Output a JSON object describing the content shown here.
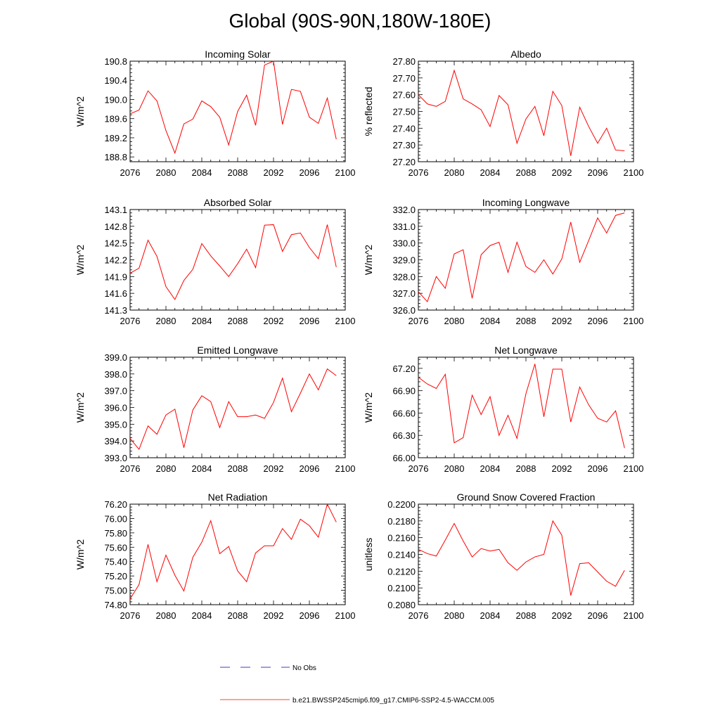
{
  "title": "Global (90S-90N,180W-180E)",
  "colors": {
    "model": "#ff0000",
    "obs": "#0000aa",
    "axis": "#000000"
  },
  "legend": {
    "obs_label": "No Obs",
    "model_label": "b.e21.BWSSP245cmip6.f09_g17.CMIP6-SSP2-4.5-WACCM.005"
  },
  "chart_data": [
    {
      "type": "line",
      "title": "Incoming Solar",
      "ylabel": "W/m^2",
      "xlim": [
        2076,
        2100
      ],
      "ylim": [
        188.7,
        190.8
      ],
      "xticks": [
        2076,
        2080,
        2084,
        2088,
        2092,
        2096,
        2100
      ],
      "yticks": [
        188.8,
        189.2,
        189.6,
        190.0,
        190.4,
        190.8
      ],
      "ytick_labels": [
        "188.8",
        "189.2",
        "189.6",
        "190.0",
        "190.4",
        "190.8"
      ],
      "x": [
        2076,
        2077,
        2078,
        2079,
        2080,
        2081,
        2082,
        2083,
        2084,
        2085,
        2086,
        2087,
        2088,
        2089,
        2090,
        2091,
        2092,
        2093,
        2094,
        2095,
        2096,
        2097,
        2098,
        2099
      ],
      "values": [
        189.7,
        189.78,
        190.18,
        189.97,
        189.35,
        188.88,
        189.49,
        189.59,
        189.97,
        189.85,
        189.63,
        189.05,
        189.75,
        190.09,
        189.46,
        190.72,
        190.8,
        189.48,
        190.21,
        190.17,
        189.63,
        189.5,
        190.03,
        189.17
      ]
    },
    {
      "type": "line",
      "title": "Albedo",
      "ylabel": "% reflected",
      "xlim": [
        2076,
        2100
      ],
      "ylim": [
        27.2,
        27.8
      ],
      "xticks": [
        2076,
        2080,
        2084,
        2088,
        2092,
        2096,
        2100
      ],
      "yticks": [
        27.2,
        27.3,
        27.4,
        27.5,
        27.6,
        27.7,
        27.8
      ],
      "ytick_labels": [
        "27.20",
        "27.30",
        "27.40",
        "27.50",
        "27.60",
        "27.70",
        "27.80"
      ],
      "x": [
        2076,
        2077,
        2078,
        2079,
        2080,
        2081,
        2082,
        2083,
        2084,
        2085,
        2086,
        2087,
        2088,
        2089,
        2090,
        2091,
        2092,
        2093,
        2094,
        2095,
        2096,
        2097,
        2098,
        2099
      ],
      "values": [
        27.6,
        27.545,
        27.53,
        27.56,
        27.745,
        27.575,
        27.545,
        27.51,
        27.41,
        27.595,
        27.54,
        27.31,
        27.455,
        27.53,
        27.355,
        27.62,
        27.535,
        27.235,
        27.525,
        27.41,
        27.31,
        27.4,
        27.27,
        27.265
      ]
    },
    {
      "type": "line",
      "title": "Absorbed Solar",
      "ylabel": "W/m^2",
      "xlim": [
        2076,
        2100
      ],
      "ylim": [
        141.3,
        143.1
      ],
      "xticks": [
        2076,
        2080,
        2084,
        2088,
        2092,
        2096,
        2100
      ],
      "yticks": [
        141.3,
        141.6,
        141.9,
        142.2,
        142.5,
        142.8,
        143.1
      ],
      "ytick_labels": [
        "141.3",
        "141.6",
        "141.9",
        "142.2",
        "142.5",
        "142.8",
        "143.1"
      ],
      "x": [
        2076,
        2077,
        2078,
        2079,
        2080,
        2081,
        2082,
        2083,
        2084,
        2085,
        2086,
        2087,
        2088,
        2089,
        2090,
        2091,
        2092,
        2093,
        2094,
        2095,
        2096,
        2097,
        2098,
        2099
      ],
      "values": [
        141.96,
        142.05,
        142.55,
        142.26,
        141.72,
        141.49,
        141.83,
        142.03,
        142.49,
        142.27,
        142.09,
        141.9,
        142.13,
        142.39,
        142.06,
        142.82,
        142.83,
        142.35,
        142.65,
        142.68,
        142.42,
        142.22,
        142.83,
        142.07
      ]
    },
    {
      "type": "line",
      "title": "Incoming Longwave",
      "ylabel": "W/m^2",
      "xlim": [
        2076,
        2100
      ],
      "ylim": [
        326.0,
        332.0
      ],
      "xticks": [
        2076,
        2080,
        2084,
        2088,
        2092,
        2096,
        2100
      ],
      "yticks": [
        326.0,
        327.0,
        328.0,
        329.0,
        330.0,
        331.0,
        332.0
      ],
      "ytick_labels": [
        "326.0",
        "327.0",
        "328.0",
        "329.0",
        "330.0",
        "331.0",
        "332.0"
      ],
      "x": [
        2076,
        2077,
        2078,
        2079,
        2080,
        2081,
        2082,
        2083,
        2084,
        2085,
        2086,
        2087,
        2088,
        2089,
        2090,
        2091,
        2092,
        2093,
        2094,
        2095,
        2096,
        2097,
        2098,
        2099
      ],
      "values": [
        327.1,
        326.5,
        328.0,
        327.3,
        329.35,
        329.6,
        326.7,
        329.3,
        329.85,
        330.05,
        328.25,
        330.05,
        328.6,
        328.25,
        329.0,
        328.15,
        329.05,
        331.25,
        328.85,
        330.15,
        331.5,
        330.6,
        331.65,
        331.8
      ]
    },
    {
      "type": "line",
      "title": "Emitted Longwave",
      "ylabel": "W/m^2",
      "xlim": [
        2076,
        2100
      ],
      "ylim": [
        393.0,
        399.0
      ],
      "xticks": [
        2076,
        2080,
        2084,
        2088,
        2092,
        2096,
        2100
      ],
      "yticks": [
        393.0,
        394.0,
        395.0,
        396.0,
        397.0,
        398.0,
        399.0
      ],
      "ytick_labels": [
        "393.0",
        "394.0",
        "395.0",
        "396.0",
        "397.0",
        "398.0",
        "399.0"
      ],
      "x": [
        2076,
        2077,
        2078,
        2079,
        2080,
        2081,
        2082,
        2083,
        2084,
        2085,
        2086,
        2087,
        2088,
        2089,
        2090,
        2091,
        2092,
        2093,
        2094,
        2095,
        2096,
        2097,
        2098,
        2099
      ],
      "values": [
        394.15,
        393.5,
        394.9,
        394.4,
        395.55,
        395.9,
        393.6,
        395.85,
        396.7,
        396.35,
        394.8,
        396.35,
        395.45,
        395.45,
        395.55,
        395.35,
        396.3,
        397.75,
        395.75,
        396.85,
        398.0,
        397.05,
        398.3,
        397.9
      ]
    },
    {
      "type": "line",
      "title": "Net Longwave",
      "ylabel": "W/m^2",
      "xlim": [
        2076,
        2100
      ],
      "ylim": [
        66.0,
        67.35
      ],
      "xticks": [
        2076,
        2080,
        2084,
        2088,
        2092,
        2096,
        2100
      ],
      "yticks": [
        66.0,
        66.3,
        66.6,
        66.9,
        67.2
      ],
      "ytick_labels": [
        "66.00",
        "66.30",
        "66.60",
        "66.90",
        "67.20"
      ],
      "x": [
        2076,
        2077,
        2078,
        2079,
        2080,
        2081,
        2082,
        2083,
        2084,
        2085,
        2086,
        2087,
        2088,
        2089,
        2090,
        2091,
        2092,
        2093,
        2094,
        2095,
        2096,
        2097,
        2098,
        2099
      ],
      "values": [
        67.08,
        66.99,
        66.93,
        67.12,
        66.2,
        66.27,
        66.84,
        66.58,
        66.82,
        66.3,
        66.57,
        66.26,
        66.86,
        67.26,
        66.55,
        67.19,
        67.19,
        66.48,
        66.95,
        66.71,
        66.53,
        66.48,
        66.63,
        66.13
      ]
    },
    {
      "type": "line",
      "title": "Net Radiation",
      "ylabel": "W/m^2",
      "xlim": [
        2076,
        2100
      ],
      "ylim": [
        74.8,
        76.2
      ],
      "xticks": [
        2076,
        2080,
        2084,
        2088,
        2092,
        2096,
        2100
      ],
      "yticks": [
        74.8,
        75.0,
        75.2,
        75.4,
        75.6,
        75.8,
        76.0,
        76.2
      ],
      "ytick_labels": [
        "74.80",
        "75.00",
        "75.20",
        "75.40",
        "75.60",
        "75.80",
        "76.00",
        "76.20"
      ],
      "x": [
        2076,
        2077,
        2078,
        2079,
        2080,
        2081,
        2082,
        2083,
        2084,
        2085,
        2086,
        2087,
        2088,
        2089,
        2090,
        2091,
        2092,
        2093,
        2094,
        2095,
        2096,
        2097,
        2098,
        2099
      ],
      "values": [
        74.88,
        75.08,
        75.64,
        75.12,
        75.49,
        75.21,
        74.99,
        75.46,
        75.67,
        75.97,
        75.51,
        75.61,
        75.27,
        75.12,
        75.52,
        75.62,
        75.62,
        75.86,
        75.71,
        75.99,
        75.9,
        75.74,
        76.2,
        75.95
      ]
    },
    {
      "type": "line",
      "title": "Ground Snow Covered Fraction",
      "ylabel": "unitless",
      "xlim": [
        2076,
        2100
      ],
      "ylim": [
        0.208,
        0.22
      ],
      "xticks": [
        2076,
        2080,
        2084,
        2088,
        2092,
        2096,
        2100
      ],
      "yticks": [
        0.208,
        0.21,
        0.212,
        0.214,
        0.216,
        0.218,
        0.22
      ],
      "ytick_labels": [
        "0.2080",
        "0.2100",
        "0.2120",
        "0.2140",
        "0.2160",
        "0.2180",
        "0.2200"
      ],
      "x": [
        2076,
        2077,
        2078,
        2079,
        2080,
        2081,
        2082,
        2083,
        2084,
        2085,
        2086,
        2087,
        2088,
        2089,
        2090,
        2091,
        2092,
        2093,
        2094,
        2095,
        2096,
        2097,
        2098,
        2099
      ],
      "values": [
        0.2146,
        0.2141,
        0.2138,
        0.2157,
        0.2177,
        0.2156,
        0.2137,
        0.2147,
        0.2144,
        0.2146,
        0.213,
        0.2121,
        0.2131,
        0.2137,
        0.214,
        0.218,
        0.2163,
        0.2091,
        0.2129,
        0.213,
        0.2119,
        0.2108,
        0.2102,
        0.2121
      ]
    }
  ]
}
